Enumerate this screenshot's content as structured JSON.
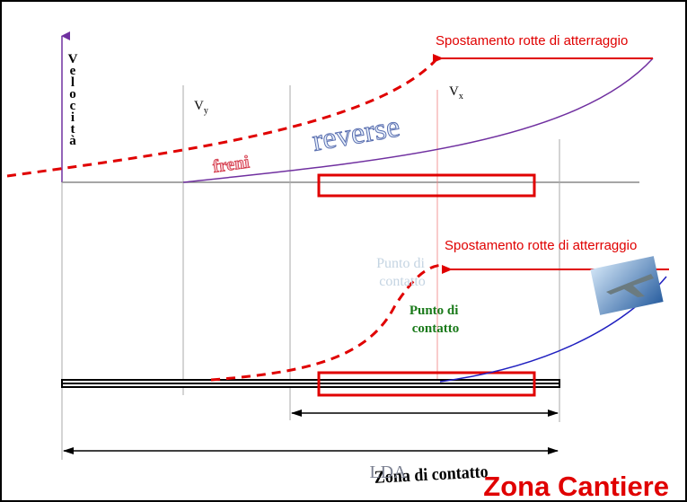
{
  "diagram": {
    "speed_axis": "Velocità",
    "vy": {
      "main": "V",
      "sub": "y"
    },
    "vx": {
      "main": "V",
      "sub": "x"
    },
    "shift_top": "Spostamento rotte di atterraggio",
    "shift_bottom": "Spostamento rotte di atterraggio",
    "brakes": "freni",
    "reverse": "reverse",
    "touchdown_faded": [
      "Punto di",
      "contatto"
    ],
    "touchdown": [
      "Punto di",
      "contatto"
    ],
    "contact_zone": "Zona di contatto",
    "lda": "LDA",
    "site": "Zona Cantiere"
  }
}
